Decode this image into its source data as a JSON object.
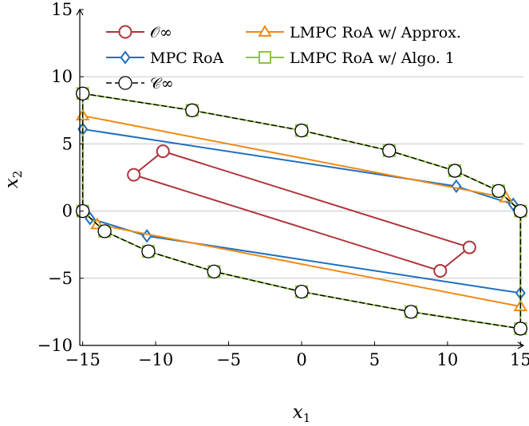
{
  "chart_data": {
    "type": "line",
    "xlabel": "x",
    "xlabel_sub": "1",
    "ylabel": "x",
    "ylabel_sub": "2",
    "xlim": [
      -15.2,
      15.2
    ],
    "ylim": [
      -10,
      15
    ],
    "x_ticks": [
      -15,
      -10,
      -5,
      0,
      5,
      10,
      15
    ],
    "y_ticks": [
      -10,
      -5,
      0,
      5,
      10,
      15
    ],
    "x_tick_labels": [
      "−15",
      "−10",
      "−5",
      "0",
      "5",
      "10",
      "15"
    ],
    "y_tick_labels": [
      "−10",
      "−5",
      "0",
      "5",
      "10",
      "15"
    ],
    "grid": "horizontal",
    "legend_position": "top",
    "series": [
      {
        "name": "𝒪∞",
        "color": "#b0343c",
        "marker": "circle",
        "style": "solid",
        "points": [
          [
            -11.5,
            2.7
          ],
          [
            -9.5,
            4.45
          ],
          [
            11.5,
            -2.7
          ],
          [
            9.5,
            -4.45
          ],
          [
            -11.5,
            2.7
          ]
        ]
      },
      {
        "name": "MPC RoA",
        "color": "#1f6fbf",
        "marker": "diamond",
        "style": "solid",
        "points": [
          [
            -15,
            0
          ],
          [
            -14.5,
            -0.55
          ],
          [
            -10.6,
            -1.85
          ],
          [
            15,
            -6.1
          ],
          [
            15,
            0
          ],
          [
            14.5,
            0.5
          ],
          [
            10.6,
            1.85
          ],
          [
            -15,
            6.1
          ],
          [
            -15,
            0
          ]
        ]
      },
      {
        "name": "LMPC RoA w/ Approx.",
        "color": "#ef8a17",
        "marker": "triangle",
        "style": "solid",
        "points": [
          [
            -15,
            0
          ],
          [
            -14,
            -1.0
          ],
          [
            15,
            -7.1
          ],
          [
            15,
            0
          ],
          [
            14,
            1.0
          ],
          [
            -15,
            7.1
          ],
          [
            -15,
            0
          ]
        ]
      },
      {
        "name": "LMPC RoA w/ Algo. 1",
        "color": "#8cc63f",
        "marker": "square",
        "style": "solid",
        "points": [
          [
            -15,
            0
          ],
          [
            -13.5,
            -1.5
          ],
          [
            -10.5,
            -3
          ],
          [
            -6,
            -4.5
          ],
          [
            0,
            -6
          ],
          [
            7.5,
            -7.5
          ],
          [
            15,
            -8.75
          ],
          [
            15,
            0
          ],
          [
            13.5,
            1.5
          ],
          [
            10.5,
            3
          ],
          [
            6,
            4.5
          ],
          [
            0,
            6
          ],
          [
            -7.5,
            7.5
          ],
          [
            -15,
            8.75
          ],
          [
            -15,
            0
          ]
        ]
      },
      {
        "name": "𝒞∞",
        "color": "#000000",
        "marker": "circle-open",
        "style": "dashed",
        "points": [
          [
            -15,
            0
          ],
          [
            -13.5,
            -1.5
          ],
          [
            -10.5,
            -3
          ],
          [
            -6,
            -4.5
          ],
          [
            0,
            -6
          ],
          [
            7.5,
            -7.5
          ],
          [
            15,
            -8.75
          ],
          [
            15,
            0
          ],
          [
            13.5,
            1.5
          ],
          [
            10.5,
            3
          ],
          [
            6,
            4.5
          ],
          [
            0,
            6
          ],
          [
            -7.5,
            7.5
          ],
          [
            -15,
            8.75
          ],
          [
            -15,
            0
          ]
        ]
      }
    ]
  }
}
